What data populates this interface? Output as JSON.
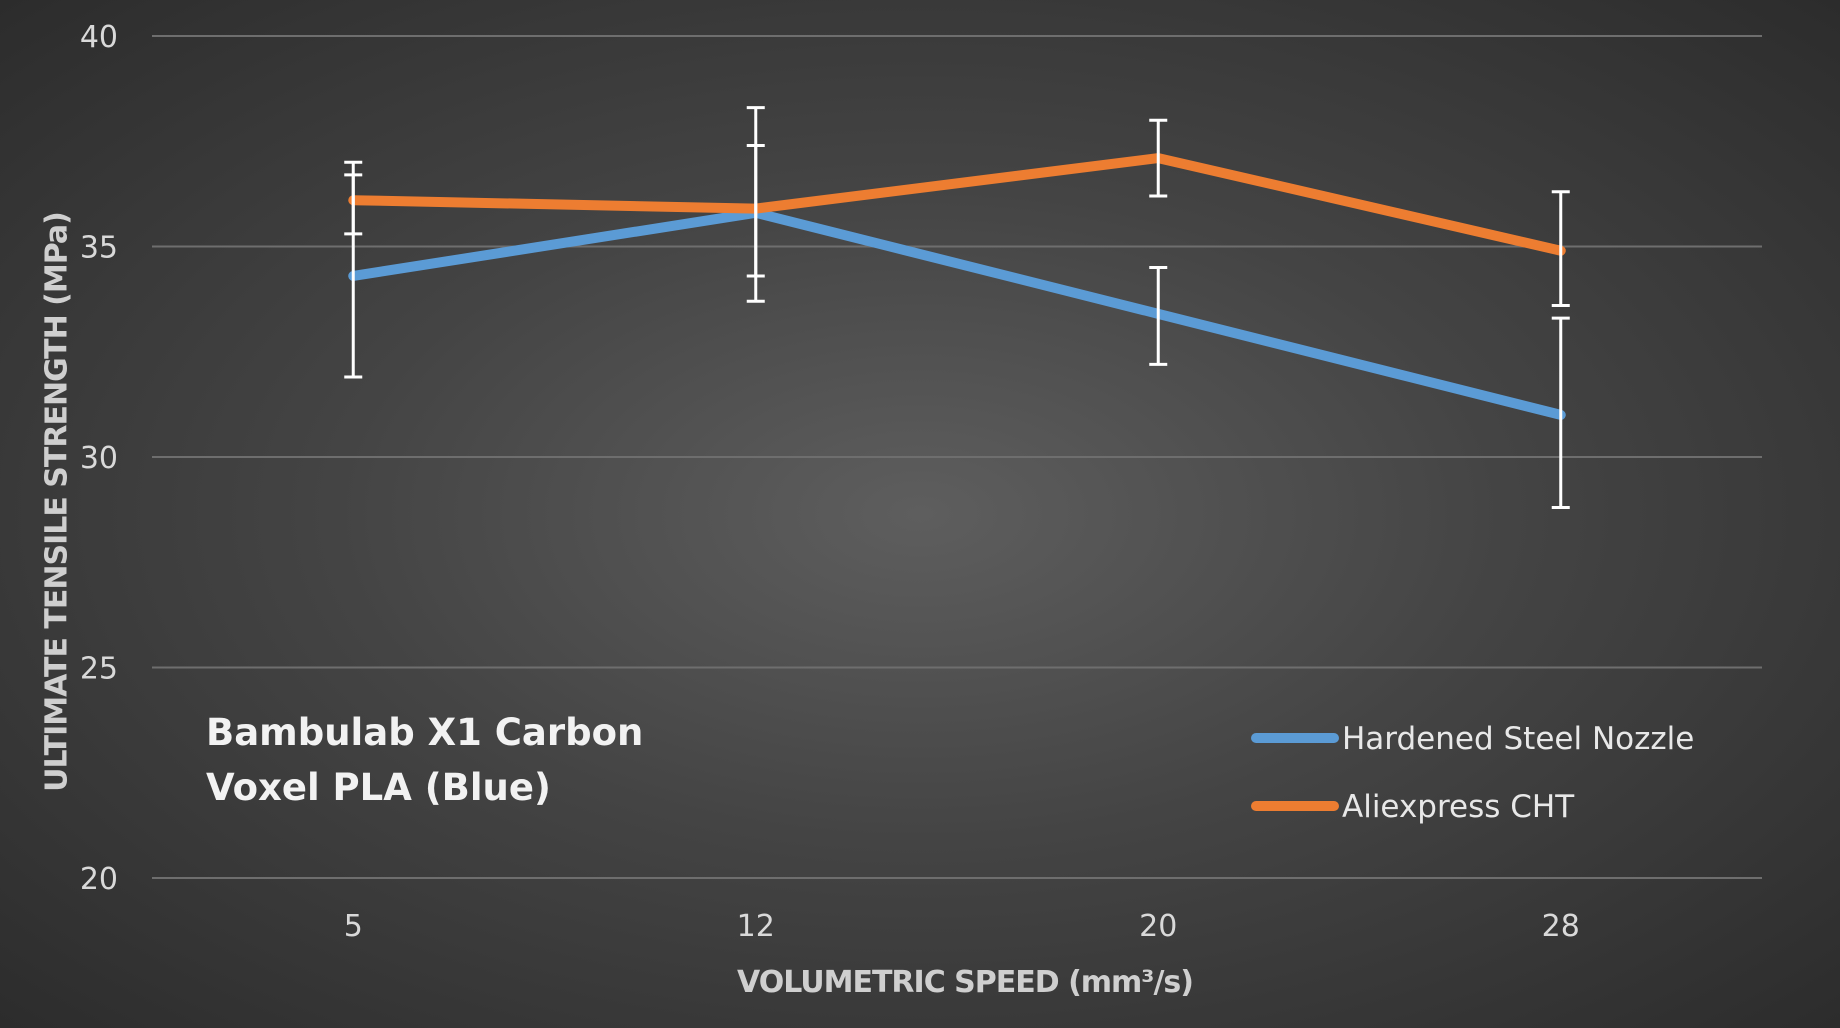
{
  "chart_data": {
    "type": "line",
    "categories": [
      "5",
      "12",
      "20",
      "28"
    ],
    "xlabel": "VOLUMETRIC SPEED (mm³/s)",
    "ylabel": "ULTIMATE TENSILE STRENGTH (MPa)",
    "ylim": [
      20,
      40
    ],
    "yticks": [
      20,
      25,
      30,
      35,
      40
    ],
    "grid": true,
    "legend_position": "right",
    "annotation": [
      "Bambulab X1 Carbon",
      "Voxel PLA (Blue)"
    ],
    "series": [
      {
        "name": "Hardened Steel Nozzle",
        "color": "#5b9bd5",
        "values": [
          34.3,
          35.8,
          33.4,
          31.0
        ],
        "error_low": [
          31.9,
          34.3,
          32.2,
          28.8
        ],
        "error_high": [
          36.7,
          37.4,
          34.5,
          33.3
        ]
      },
      {
        "name": "Aliexpress CHT",
        "color": "#ed7d31",
        "values": [
          36.1,
          35.9,
          37.1,
          34.9
        ],
        "error_low": [
          35.3,
          33.7,
          36.2,
          33.6
        ],
        "error_high": [
          37.0,
          38.3,
          38.0,
          36.3
        ]
      }
    ]
  }
}
